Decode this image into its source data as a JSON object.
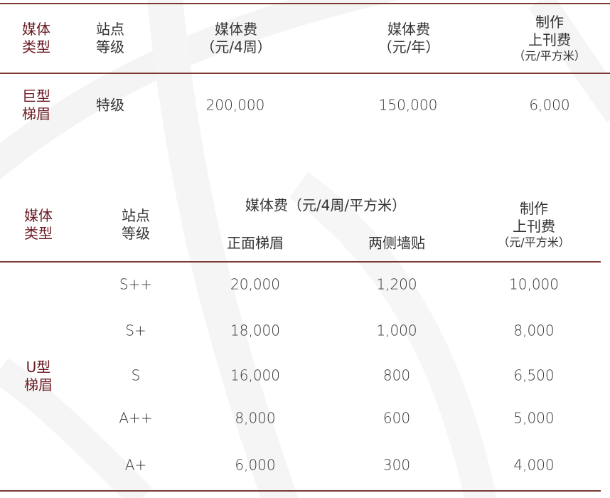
{
  "colors": {
    "accent": "#6b1a22",
    "text": "#333333",
    "rule": "#7a3b33"
  },
  "table1": {
    "headers": {
      "media_type": [
        "媒体",
        "类型"
      ],
      "station_level": [
        "站点",
        "等级"
      ],
      "fee_4week": [
        "媒体费",
        "（元/4周）"
      ],
      "fee_year": [
        "媒体费",
        "（元/年）"
      ],
      "production": [
        "制作",
        "上刊费"
      ],
      "production_unit": "（元/平方米）"
    },
    "row": {
      "media_type": [
        "巨型",
        "梯眉"
      ],
      "level": "特级",
      "fee_4week": "200,000",
      "fee_year": "150,000",
      "production": "6,000"
    }
  },
  "table2": {
    "headers": {
      "media_type": [
        "媒体",
        "类型"
      ],
      "station_level": [
        "站点",
        "等级"
      ],
      "fee_group": "媒体费（元/4周/平方米）",
      "front": "正面梯眉",
      "side": "两侧墙贴",
      "production": [
        "制作",
        "上刊费"
      ],
      "production_unit": "（元/平方米）"
    },
    "media_type": [
      "U型",
      "梯眉"
    ],
    "rows": [
      {
        "level": "S++",
        "front": "20,000",
        "side": "1,200",
        "production": "10,000"
      },
      {
        "level": "S+",
        "front": "18,000",
        "side": "1,000",
        "production": "8,000"
      },
      {
        "level": "S",
        "front": "16,000",
        "side": "800",
        "production": "6,500"
      },
      {
        "level": "A++",
        "front": "8,000",
        "side": "600",
        "production": "5,000"
      },
      {
        "level": "A+",
        "front": "6,000",
        "side": "300",
        "production": "4,000"
      }
    ]
  }
}
